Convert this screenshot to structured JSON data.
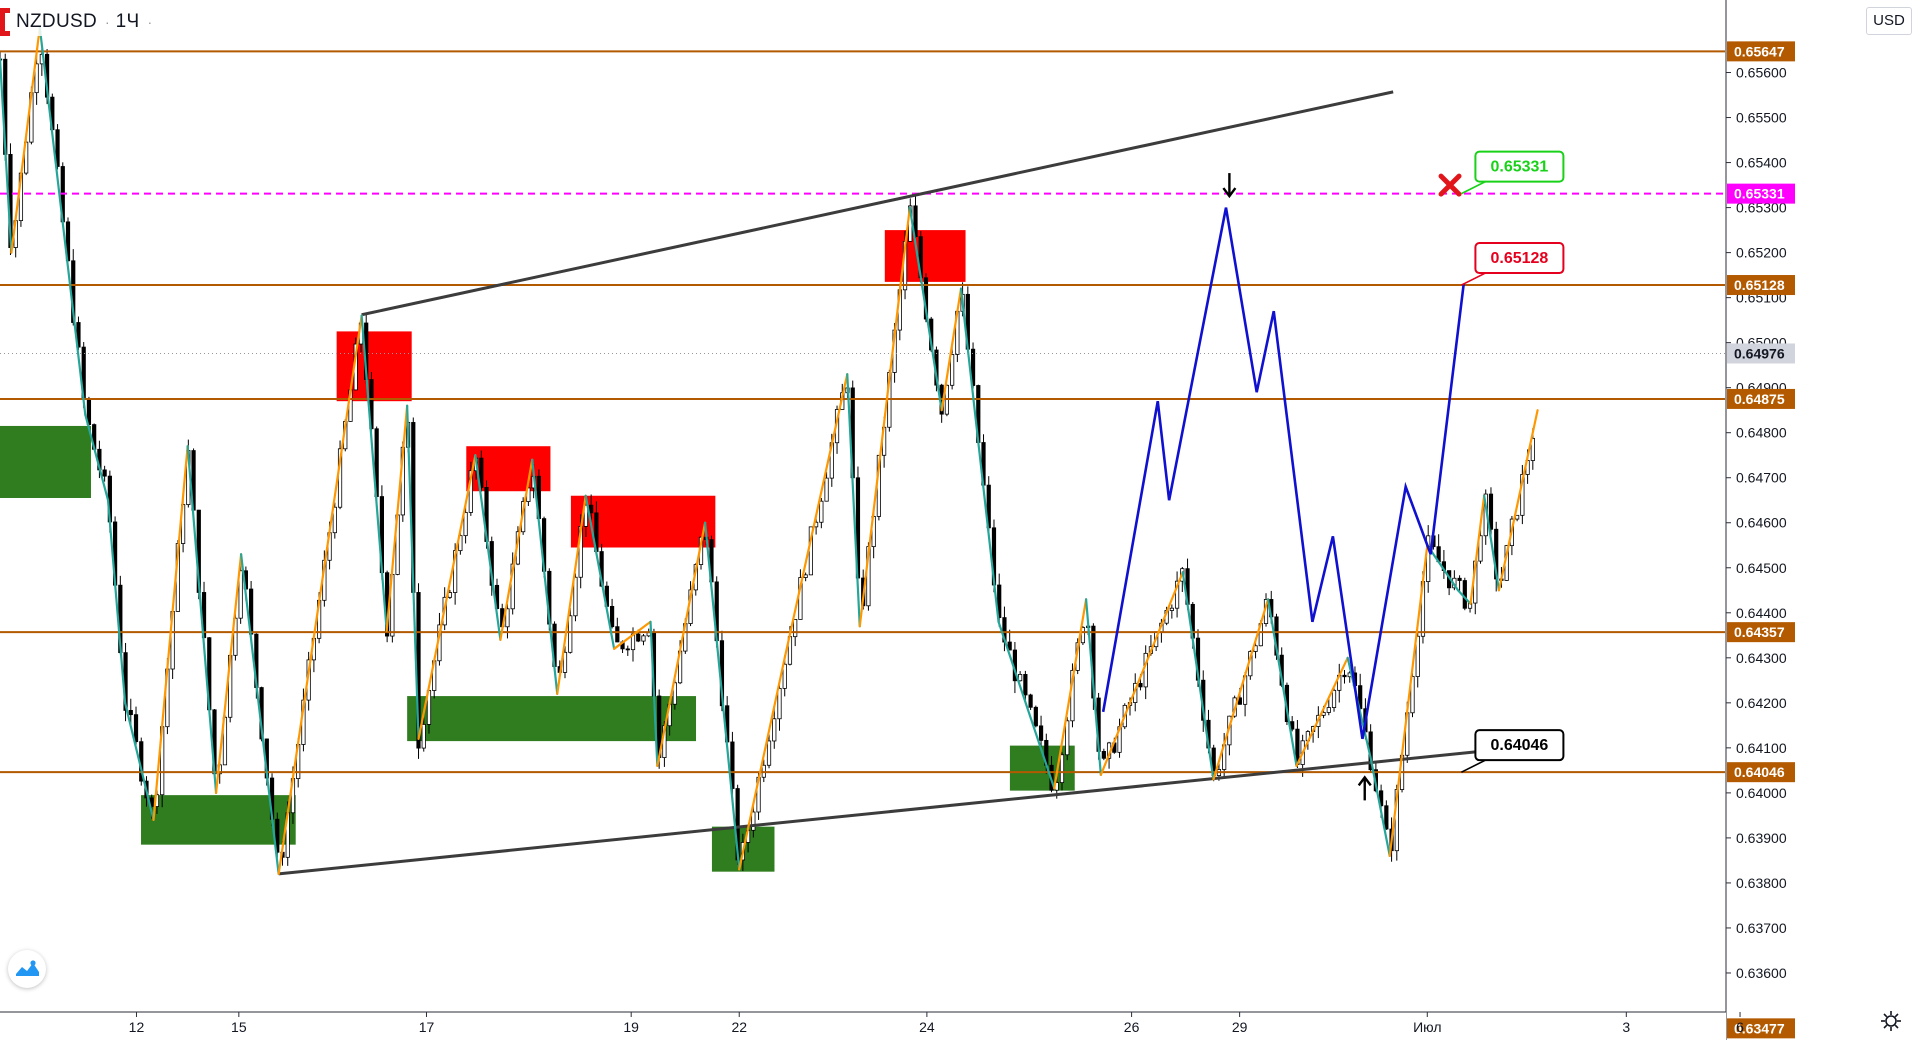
{
  "header": {
    "symbol": "NZDUSD",
    "interval": "1Ч",
    "currency": "USD"
  },
  "icons": {
    "symbol_marker": "red-bracket-icon",
    "logo": "tradingview-logo-icon",
    "settings": "gear-icon",
    "down_arrow": "arrow-down-icon",
    "up_arrow": "arrow-up-icon",
    "cancel_mark": "red-cross-icon"
  },
  "colors": {
    "level_line": "#b35a00",
    "resistance_zone": "#ff0000",
    "support_zone": "#2f7d1f",
    "trendline": "#3c3c3c",
    "zigzag_up": "#ff9800",
    "zigzag_down": "#26a69a",
    "projection": "#1010d0",
    "target_line": "#ff00ff",
    "target_green": "#19d119",
    "target_red": "#e5001d"
  },
  "chart_data": {
    "type": "candlestick",
    "symbol": "NZDUSD",
    "interval": "1Ч",
    "ylim": [
      0.6347,
      0.6572
    ],
    "x_range": [
      0,
      1690
    ],
    "y_tick_labels": [
      "0.65600",
      "0.65500",
      "0.65400",
      "0.65300",
      "0.65200",
      "0.65100",
      "0.65000",
      "0.64900",
      "0.64800",
      "0.64700",
      "0.64600",
      "0.64500",
      "0.64400",
      "0.64300",
      "0.64200",
      "0.64100",
      "0.64000",
      "0.63900",
      "0.63800",
      "0.63700",
      "0.63600"
    ],
    "y_ticks": [
      0.656,
      0.655,
      0.654,
      0.653,
      0.652,
      0.651,
      0.65,
      0.649,
      0.648,
      0.647,
      0.646,
      0.645,
      0.644,
      0.643,
      0.642,
      0.641,
      0.64,
      0.639,
      0.638,
      0.637,
      0.636
    ],
    "x_tick_labels": [
      "12",
      "15",
      "17",
      "19",
      "22",
      "24",
      "26",
      "29",
      "Июл",
      "3",
      "6"
    ],
    "x_ticks": [
      120,
      210,
      375,
      555,
      650,
      815,
      995,
      1090,
      1255,
      1430,
      1530
    ],
    "levels": [
      {
        "price": 0.65647,
        "label": "0.65647",
        "style": "solid"
      },
      {
        "price": 0.65128,
        "label": "0.65128",
        "style": "solid"
      },
      {
        "price": 0.64875,
        "label": "0.64875",
        "style": "solid"
      },
      {
        "price": 0.64357,
        "label": "0.64357",
        "style": "solid"
      },
      {
        "price": 0.64046,
        "label": "0.64046",
        "style": "solid"
      },
      {
        "price": 0.63477,
        "label": "0.63477",
        "style": "solid"
      }
    ],
    "target_line": {
      "price": 0.65331,
      "label": "0.65331"
    },
    "last_price": {
      "price": 0.64976,
      "label": "0.64976"
    },
    "callouts": [
      {
        "text": "0.65331",
        "color": "green",
        "anchor_x": 1285,
        "anchor_price": 0.65331
      },
      {
        "text": "0.65128",
        "color": "red",
        "anchor_x": 1285,
        "anchor_price": 0.65128
      },
      {
        "text": "0.64046",
        "color": "black",
        "anchor_x": 1285,
        "anchor_price": 0.64046
      }
    ],
    "trendlines": [
      {
        "points": [
          [
            318,
            0.65062
          ],
          [
            1225,
            0.65557
          ]
        ]
      },
      {
        "points": [
          [
            245,
            0.6382
          ],
          [
            1305,
            0.64093
          ]
        ]
      }
    ],
    "resistance_zones": [
      {
        "x": [
          296,
          362
        ],
        "price": [
          0.6487,
          0.65025
        ]
      },
      {
        "x": [
          410,
          484
        ],
        "price": [
          0.6467,
          0.6477
        ]
      },
      {
        "x": [
          502,
          629
        ],
        "price": [
          0.64545,
          0.6466
        ]
      },
      {
        "x": [
          778,
          849
        ],
        "price": [
          0.65135,
          0.6525
        ]
      }
    ],
    "support_zones": [
      {
        "x": [
          0,
          80
        ],
        "price": [
          0.64655,
          0.64815
        ]
      },
      {
        "x": [
          124,
          260
        ],
        "price": [
          0.63885,
          0.63995
        ]
      },
      {
        "x": [
          358,
          612
        ],
        "price": [
          0.64115,
          0.64215
        ]
      },
      {
        "x": [
          626,
          681
        ],
        "price": [
          0.63825,
          0.63925
        ]
      },
      {
        "x": [
          888,
          945
        ],
        "price": [
          0.64005,
          0.64105
        ]
      }
    ],
    "projection_path": [
      [
        970,
        0.6418
      ],
      [
        1018,
        0.6487
      ],
      [
        1028,
        0.6465
      ],
      [
        1078,
        0.653
      ],
      [
        1105,
        0.6489
      ],
      [
        1120,
        0.6507
      ],
      [
        1154,
        0.6438
      ],
      [
        1172,
        0.6457
      ],
      [
        1198,
        0.6412
      ],
      [
        1236,
        0.6468
      ],
      [
        1258,
        0.6453
      ],
      [
        1287,
        0.6513
      ]
    ],
    "zigzag": [
      [
        0,
        0.6563
      ],
      [
        10,
        0.652
      ],
      [
        35,
        0.657
      ],
      [
        75,
        0.6484
      ],
      [
        95,
        0.6465
      ],
      [
        110,
        0.642
      ],
      [
        135,
        0.6394
      ],
      [
        165,
        0.6477
      ],
      [
        190,
        0.64
      ],
      [
        212,
        0.6453
      ],
      [
        245,
        0.6382
      ],
      [
        318,
        0.6506
      ],
      [
        340,
        0.6436
      ],
      [
        358,
        0.6486
      ],
      [
        368,
        0.6412
      ],
      [
        418,
        0.6475
      ],
      [
        440,
        0.6434
      ],
      [
        468,
        0.6474
      ],
      [
        490,
        0.6422
      ],
      [
        515,
        0.6466
      ],
      [
        540,
        0.6432
      ],
      [
        572,
        0.6438
      ],
      [
        578,
        0.6406
      ],
      [
        620,
        0.646
      ],
      [
        650,
        0.6383
      ],
      [
        690,
        0.643
      ],
      [
        745,
        0.6493
      ],
      [
        756,
        0.6437
      ],
      [
        800,
        0.653
      ],
      [
        828,
        0.6485
      ],
      [
        845,
        0.6512
      ],
      [
        878,
        0.6438
      ],
      [
        927,
        0.6401
      ],
      [
        955,
        0.6443
      ],
      [
        968,
        0.6404
      ],
      [
        1040,
        0.6449
      ],
      [
        1067,
        0.6403
      ],
      [
        1115,
        0.6443
      ],
      [
        1140,
        0.6406
      ],
      [
        1185,
        0.643
      ],
      [
        1205,
        0.6408
      ],
      [
        1222,
        0.6386
      ],
      [
        1255,
        0.6455
      ],
      [
        1282,
        0.6445
      ],
      [
        1293,
        0.6442
      ],
      [
        1305,
        0.6466
      ],
      [
        1318,
        0.6445
      ],
      [
        1352,
        0.6485
      ]
    ],
    "markers": [
      {
        "type": "down_arrow",
        "x": 1081,
        "price": 0.6535
      },
      {
        "type": "up_arrow",
        "x": 1200,
        "price": 0.6401
      },
      {
        "type": "cross",
        "x": 1275,
        "price": 0.6535
      }
    ]
  }
}
